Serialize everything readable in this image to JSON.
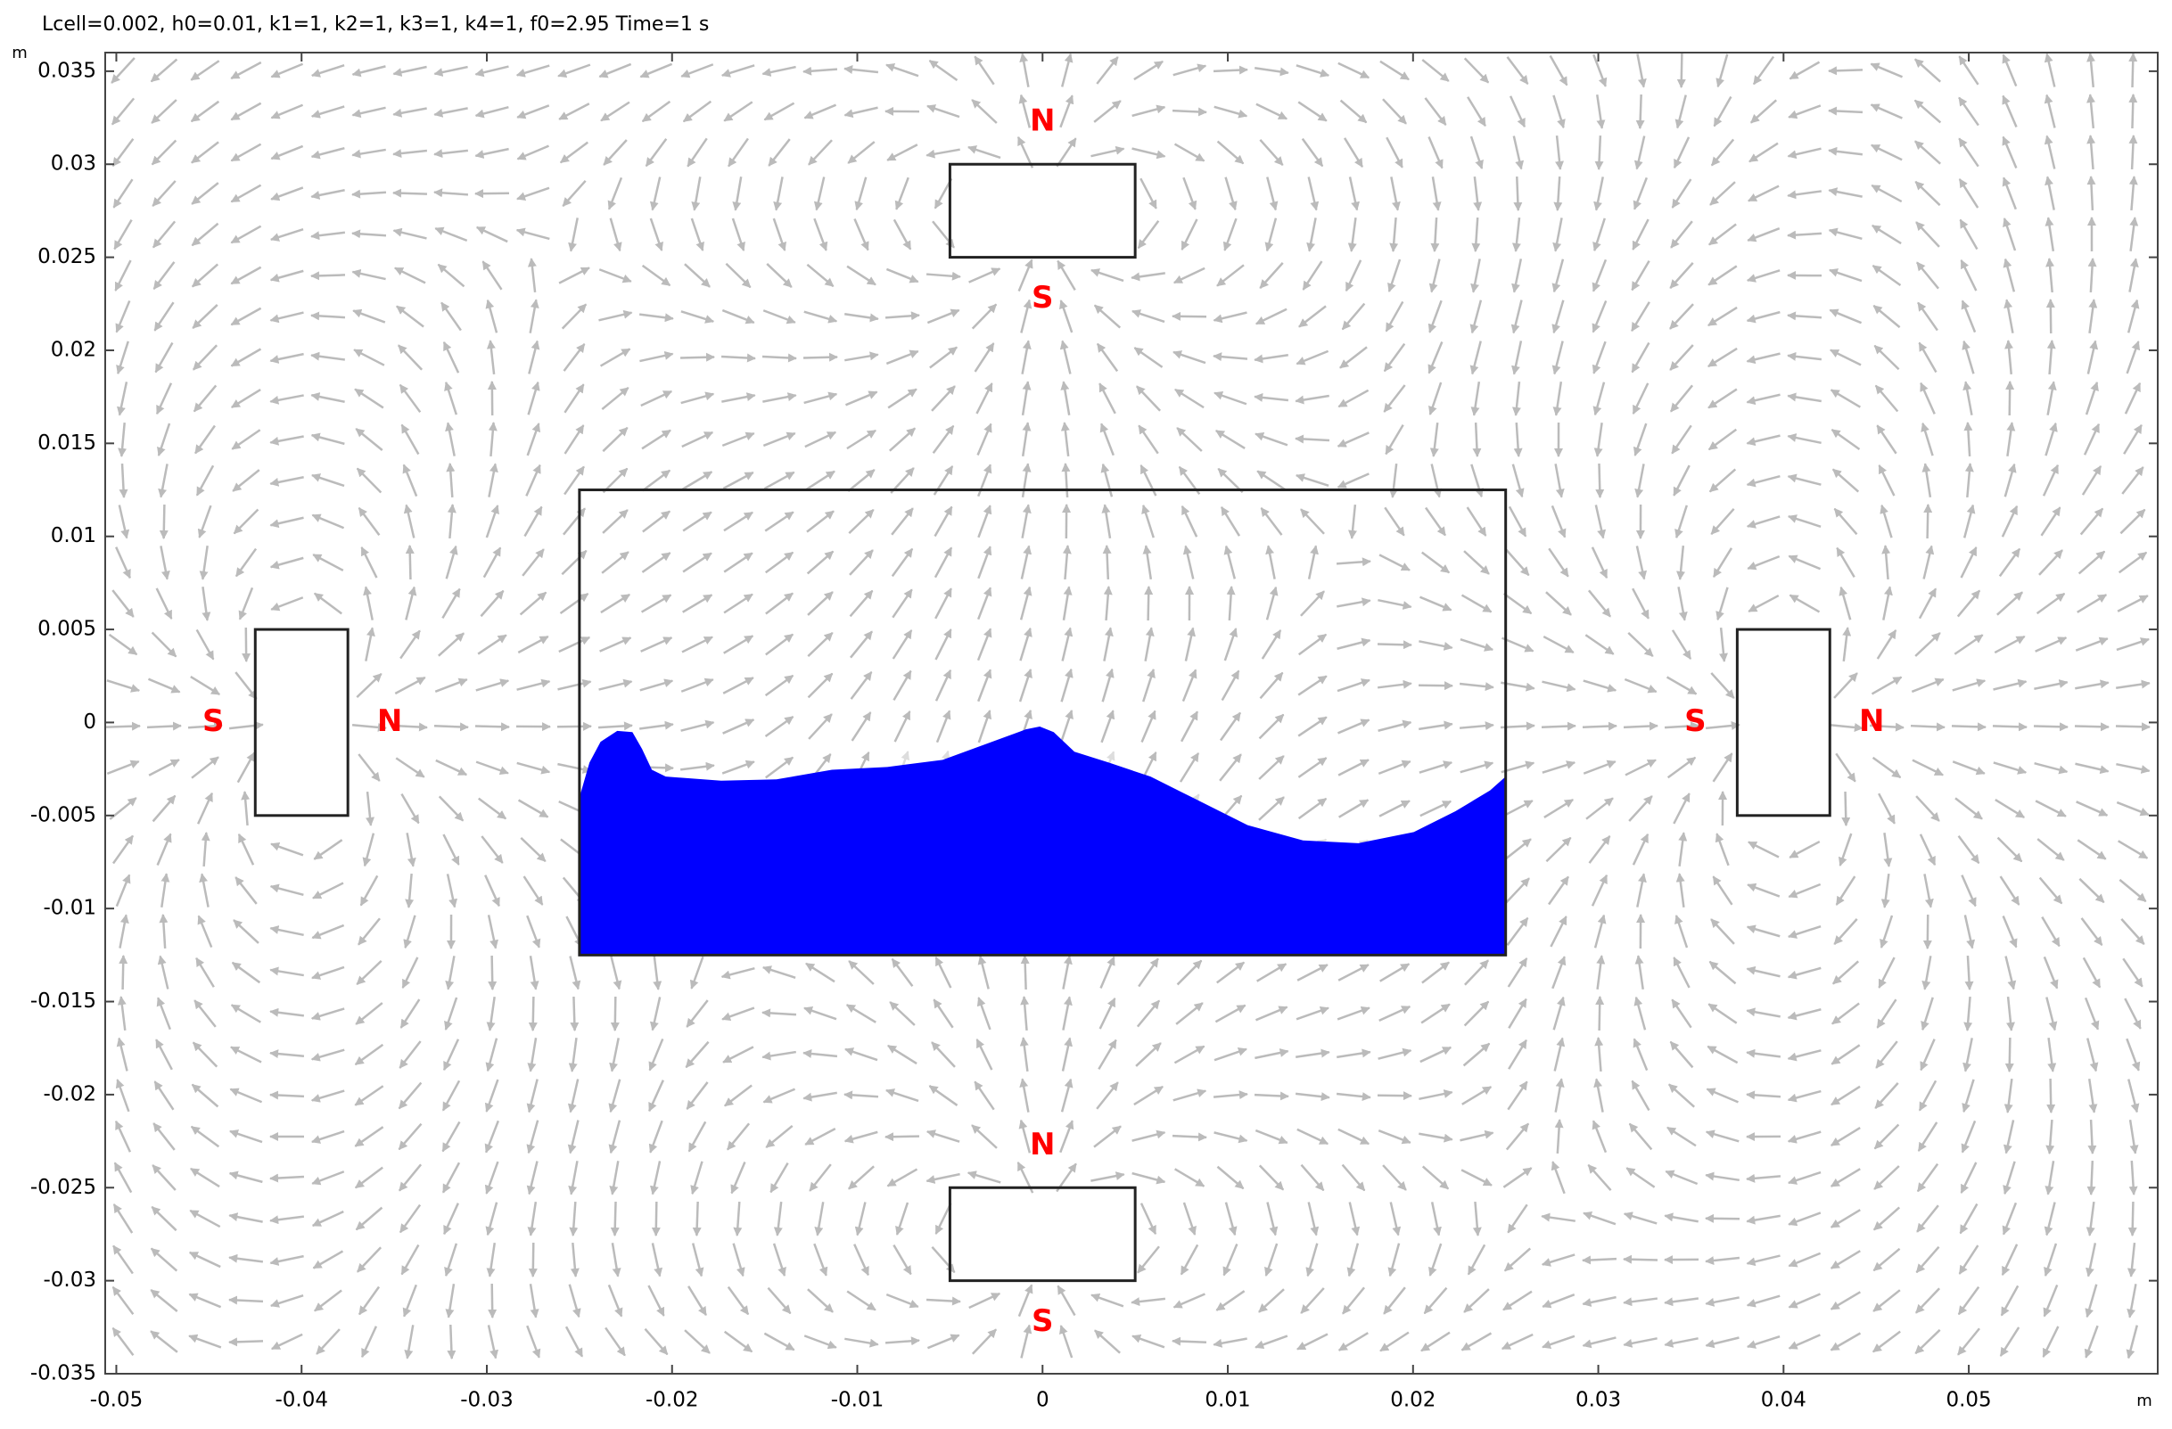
{
  "chart_data": {
    "type": "field",
    "title": "Lcell=0.002, h0=0.01, k1=1, k2=1, k3=1, k4=1, f0=2.95 Time=1 s",
    "x_unit": "m",
    "y_unit": "m",
    "xlim": [
      -0.0506,
      0.0602
    ],
    "ylim": [
      -0.035,
      0.036
    ],
    "xticks": [
      -0.05,
      -0.04,
      -0.03,
      -0.02,
      -0.01,
      0,
      0.01,
      0.02,
      0.03,
      0.04,
      0.05
    ],
    "yticks": [
      -0.035,
      -0.03,
      -0.025,
      -0.02,
      -0.015,
      -0.01,
      -0.005,
      0,
      0.005,
      0.01,
      0.015,
      0.02,
      0.025,
      0.03,
      0.035
    ],
    "arrow_color": "#bbbbbb",
    "container": {
      "x": [
        -0.025,
        0.025
      ],
      "y": [
        -0.0125,
        0.0125
      ]
    },
    "fluid": {
      "color": "#0000ff",
      "x": [
        -0.025,
        -0.02446,
        -0.02386,
        -0.02296,
        -0.02214,
        -0.02162,
        -0.02109,
        -0.02034,
        -0.01735,
        -0.01436,
        -0.01137,
        -0.00838,
        -0.00539,
        -0.00314,
        -0.0009,
        -0.00015,
        0.0006,
        0.00172,
        0.00359,
        0.00583,
        0.00808,
        0.01107,
        0.01406,
        0.01705,
        0.02004,
        0.02229,
        0.02416,
        0.025
      ],
      "y": [
        -0.00403,
        -0.00216,
        -0.00104,
        -0.00045,
        -0.00052,
        -0.00142,
        -0.00254,
        -0.00291,
        -0.00313,
        -0.00306,
        -0.00254,
        -0.00239,
        -0.00201,
        -0.00119,
        -0.00037,
        -0.00022,
        -0.00052,
        -0.00157,
        -0.00216,
        -0.00291,
        -0.00403,
        -0.00552,
        -0.00634,
        -0.00649,
        -0.00589,
        -0.00477,
        -0.00365,
        -0.00291
      ]
    },
    "magnets": [
      {
        "x": [
          -0.005,
          0.005
        ],
        "y": [
          0.025,
          0.03
        ],
        "direction": "up",
        "north_label": "N",
        "south_label": "S"
      },
      {
        "x": [
          -0.005,
          0.005
        ],
        "y": [
          -0.03,
          -0.025
        ],
        "direction": "up",
        "north_label": "N",
        "south_label": "S"
      },
      {
        "x": [
          -0.0425,
          -0.0375
        ],
        "y": [
          -0.005,
          0.005
        ],
        "direction": "right",
        "north_label": "N",
        "south_label": "S"
      },
      {
        "x": [
          0.0375,
          0.0425
        ],
        "y": [
          -0.005,
          0.005
        ],
        "direction": "right",
        "north_label": "N",
        "south_label": "S"
      }
    ]
  }
}
